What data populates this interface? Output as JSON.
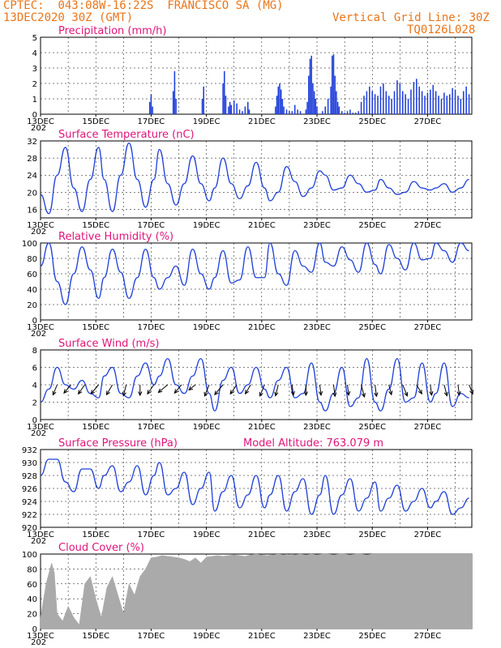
{
  "header": {
    "source": "CPTEC:",
    "coords": "043:08W-16:22S",
    "station": "FRANCISCO SA (MG)",
    "date": "13DEC2020 30Z (GMT)",
    "grid_note": "Vertical Grid Line: 30Z",
    "code": "TQ0126L028"
  },
  "colors": {
    "header": "#e8751a",
    "title": "#e0157a",
    "line": "#1f3fd9",
    "bars": "#1f3fd9",
    "cloud": "#aaaaaa"
  },
  "x_labels": [
    "13DEC",
    "15DEC",
    "17DEC",
    "19DEC",
    "21DEC",
    "23DEC",
    "25DEC",
    "27DEC"
  ],
  "x_sublabel": "202",
  "chart_data": [
    {
      "type": "bar",
      "title": "Precipitation (mm/h)",
      "ylim": [
        0,
        5
      ],
      "yticks": [
        0,
        1,
        2,
        3,
        4,
        5
      ],
      "x_start_day": 13,
      "x_end_day": 28.6,
      "x": [
        16.95,
        17.0,
        17.05,
        17.8,
        17.85,
        17.9,
        18.85,
        18.9,
        19.6,
        19.65,
        19.7,
        19.8,
        19.85,
        19.9,
        20.0,
        20.1,
        20.2,
        20.3,
        20.4,
        20.5,
        20.55,
        21.5,
        21.55,
        21.6,
        21.65,
        21.7,
        21.75,
        21.8,
        21.9,
        22.0,
        22.1,
        22.2,
        22.3,
        22.4,
        22.6,
        22.65,
        22.7,
        22.75,
        22.8,
        22.85,
        22.9,
        22.95,
        23.0,
        23.2,
        23.3,
        23.4,
        23.5,
        23.55,
        23.6,
        23.65,
        23.7,
        23.75,
        23.8,
        23.9,
        24.0,
        24.1,
        24.2,
        24.3,
        24.4,
        24.5,
        24.6,
        24.7,
        24.8,
        24.9,
        25.0,
        25.1,
        25.2,
        25.3,
        25.4,
        25.5,
        25.6,
        25.7,
        25.8,
        25.9,
        26.0,
        26.1,
        26.2,
        26.3,
        26.4,
        26.5,
        26.6,
        26.7,
        26.8,
        26.9,
        27.0,
        27.1,
        27.2,
        27.3,
        27.4,
        27.5,
        27.6,
        27.7,
        27.8,
        27.9,
        28.0,
        28.1,
        28.2,
        28.3,
        28.4,
        28.5
      ],
      "values": [
        0.8,
        1.3,
        0.5,
        1.5,
        2.8,
        1.0,
        1.0,
        1.8,
        2.0,
        2.8,
        1.2,
        0.5,
        0.8,
        0.6,
        0.9,
        0.7,
        0.3,
        0.2,
        0.5,
        0.8,
        0.3,
        0.5,
        1.2,
        1.8,
        2.0,
        1.6,
        1.0,
        0.5,
        0.3,
        0.2,
        0.2,
        0.6,
        0.3,
        0.2,
        0.3,
        0.8,
        2.5,
        3.6,
        3.8,
        2.0,
        1.5,
        1.0,
        0.5,
        0.2,
        0.5,
        1.0,
        1.8,
        3.8,
        3.9,
        2.5,
        1.5,
        0.8,
        0.5,
        0.2,
        0.1,
        0.2,
        0.3,
        0.1,
        0.1,
        0.2,
        0.8,
        1.2,
        1.5,
        1.8,
        1.5,
        1.3,
        1.2,
        1.8,
        2.0,
        1.5,
        1.2,
        1.0,
        1.5,
        2.2,
        2.0,
        1.5,
        1.3,
        1.0,
        1.6,
        2.1,
        2.3,
        1.8,
        1.5,
        1.2,
        1.4,
        1.6,
        1.9,
        1.5,
        1.2,
        1.0,
        1.4,
        1.2,
        1.3,
        1.7,
        1.6,
        1.2,
        1.0,
        1.5,
        1.8,
        1.3
      ]
    },
    {
      "type": "line",
      "title": "Surface Temperature (nC)",
      "ylim": [
        14,
        32
      ],
      "yticks": [
        16,
        20,
        24,
        28,
        32
      ],
      "x_start_day": 13,
      "x_end_day": 28.6,
      "x": [
        13.0,
        13.3,
        13.6,
        13.9,
        14.2,
        14.5,
        14.8,
        15.1,
        15.3,
        15.6,
        15.9,
        16.2,
        16.5,
        16.8,
        17.1,
        17.3,
        17.6,
        17.9,
        18.2,
        18.5,
        18.8,
        19.1,
        19.3,
        19.6,
        19.9,
        20.2,
        20.5,
        20.8,
        21.1,
        21.3,
        21.6,
        21.9,
        22.2,
        22.5,
        22.8,
        23.1,
        23.3,
        23.6,
        23.9,
        24.2,
        24.5,
        24.8,
        25.1,
        25.3,
        25.6,
        25.9,
        26.2,
        26.5,
        26.8,
        27.1,
        27.3,
        27.6,
        27.9,
        28.2,
        28.5
      ],
      "y": [
        19.5,
        15,
        24,
        30.5,
        21,
        15.5,
        23,
        30.5,
        23,
        15.5,
        24,
        31.5,
        23,
        16.5,
        23,
        30,
        22,
        17,
        22,
        28.5,
        22,
        18,
        21,
        28,
        22,
        18.5,
        21.5,
        27,
        21,
        18,
        20,
        26,
        22.5,
        19,
        21,
        25,
        24,
        20.5,
        21,
        24,
        22,
        20,
        20.5,
        23,
        21,
        19.5,
        20,
        22.5,
        21,
        20.5,
        21,
        22,
        20,
        21,
        23
      ]
    },
    {
      "type": "line",
      "title": "Relative Humidity (%)",
      "ylim": [
        0,
        100
      ],
      "yticks": [
        0,
        20,
        40,
        60,
        80,
        100
      ],
      "x_start_day": 13,
      "x_end_day": 28.6,
      "x": [
        13.0,
        13.3,
        13.6,
        13.9,
        14.2,
        14.5,
        14.8,
        15.1,
        15.3,
        15.6,
        15.9,
        16.2,
        16.5,
        16.8,
        17.1,
        17.3,
        17.6,
        17.9,
        18.2,
        18.5,
        18.8,
        19.1,
        19.3,
        19.6,
        19.9,
        20.2,
        20.5,
        20.8,
        21.1,
        21.3,
        21.6,
        21.9,
        22.2,
        22.5,
        22.8,
        23.1,
        23.3,
        23.6,
        23.9,
        24.2,
        24.5,
        24.8,
        25.1,
        25.3,
        25.6,
        25.9,
        26.2,
        26.5,
        26.8,
        27.1,
        27.3,
        27.6,
        27.9,
        28.2,
        28.5
      ],
      "y": [
        70,
        100,
        50,
        20,
        60,
        95,
        65,
        28,
        55,
        92,
        62,
        28,
        55,
        92,
        55,
        40,
        55,
        70,
        45,
        92,
        60,
        40,
        55,
        90,
        48,
        52,
        95,
        55,
        55,
        100,
        60,
        45,
        90,
        70,
        62,
        100,
        75,
        70,
        95,
        78,
        62,
        100,
        72,
        60,
        98,
        80,
        65,
        100,
        78,
        80,
        100,
        90,
        75,
        100,
        90
      ]
    },
    {
      "type": "line",
      "title": "Surface Wind (m/s)",
      "ylim": [
        0,
        8
      ],
      "yticks": [
        0,
        2,
        4,
        6,
        8
      ],
      "x_start_day": 13,
      "x_end_day": 28.6,
      "x": [
        13.0,
        13.3,
        13.6,
        13.9,
        14.2,
        14.5,
        14.8,
        15.1,
        15.3,
        15.6,
        15.9,
        16.2,
        16.5,
        16.8,
        17.1,
        17.3,
        17.6,
        17.9,
        18.2,
        18.5,
        18.8,
        19.1,
        19.3,
        19.6,
        19.9,
        20.2,
        20.5,
        20.8,
        21.1,
        21.3,
        21.6,
        21.9,
        22.2,
        22.5,
        22.8,
        23.1,
        23.3,
        23.6,
        23.9,
        24.2,
        24.5,
        24.8,
        25.1,
        25.3,
        25.6,
        25.9,
        26.2,
        26.5,
        26.8,
        27.1,
        27.3,
        27.6,
        27.9,
        28.2,
        28.5
      ],
      "y": [
        2,
        3.5,
        6,
        4,
        3.5,
        4.5,
        3,
        2.5,
        5,
        6,
        3,
        2.5,
        5,
        6.5,
        4,
        5,
        7,
        4,
        3,
        5,
        7,
        3,
        1,
        4.5,
        6,
        3,
        4,
        6,
        3.5,
        2.5,
        4.5,
        6,
        2.5,
        3,
        6.5,
        2,
        1,
        3,
        6,
        1.5,
        2.5,
        7,
        2,
        1,
        3.5,
        7,
        2,
        2.5,
        6.5,
        2,
        3,
        6.5,
        1.5,
        3,
        2.5
      ],
      "arrows_x": [
        13.6,
        14.1,
        14.6,
        15.1,
        15.6,
        16.1,
        16.6,
        17.1,
        17.6,
        18.1,
        18.6,
        19.1,
        19.6,
        20.1,
        20.6,
        21.1,
        21.6,
        22.1,
        22.6,
        23.1,
        23.6,
        24.1,
        24.6,
        25.1,
        25.6,
        26.1,
        26.6,
        27.1,
        27.6,
        28.1,
        28.5
      ],
      "arrows_dir_deg": [
        60,
        40,
        45,
        40,
        50,
        70,
        90,
        45,
        30,
        40,
        30,
        60,
        40,
        45,
        50,
        60,
        70,
        100,
        90,
        100,
        100,
        100,
        110,
        100,
        110,
        120,
        130,
        100,
        110,
        100,
        120
      ],
      "arrows_speed": [
        3.5,
        4,
        4,
        4.5,
        4,
        3.5,
        3,
        4,
        5,
        4,
        3,
        4,
        5,
        4,
        3.5,
        4,
        3.5,
        3,
        3,
        3,
        3.5,
        3,
        4,
        3.5,
        3,
        4,
        3.5,
        3,
        3.5,
        3,
        3
      ]
    },
    {
      "type": "line",
      "title": "Surface Pressure (hPa)",
      "annotation": "Model Altitude: 763.079 m",
      "ylim": [
        920,
        932
      ],
      "yticks": [
        920,
        922,
        924,
        926,
        928,
        930,
        932
      ],
      "x_start_day": 13,
      "x_end_day": 28.6,
      "x": [
        13.0,
        13.3,
        13.6,
        13.9,
        14.2,
        14.5,
        14.8,
        15.1,
        15.3,
        15.6,
        15.9,
        16.2,
        16.5,
        16.8,
        17.1,
        17.3,
        17.6,
        17.9,
        18.2,
        18.5,
        18.8,
        19.1,
        19.3,
        19.6,
        19.9,
        20.2,
        20.5,
        20.8,
        21.1,
        21.3,
        21.6,
        21.9,
        22.2,
        22.5,
        22.8,
        23.1,
        23.3,
        23.6,
        23.9,
        24.2,
        24.5,
        24.8,
        25.1,
        25.3,
        25.6,
        25.9,
        26.2,
        26.5,
        26.8,
        27.1,
        27.3,
        27.6,
        27.9,
        28.2,
        28.5
      ],
      "y": [
        928,
        930.5,
        930.5,
        927,
        925.5,
        929,
        929,
        926,
        928,
        929.5,
        925.5,
        927,
        929.5,
        925,
        928,
        930,
        925,
        926,
        928.5,
        923.5,
        926,
        928.5,
        922.5,
        925.5,
        928,
        923,
        925,
        928,
        923,
        925,
        928,
        922.5,
        925.5,
        927.5,
        922,
        925,
        928,
        922,
        925,
        927.5,
        922.5,
        924.5,
        927,
        922.5,
        924.5,
        926.5,
        922.5,
        924,
        926,
        923,
        924,
        925.5,
        922,
        923,
        924.5
      ]
    },
    {
      "type": "area",
      "title": "Cloud Cover (%)",
      "ylim": [
        0,
        100
      ],
      "yticks": [
        0,
        20,
        40,
        60,
        80,
        100
      ],
      "x_start_day": 13,
      "x_end_day": 28.6,
      "x": [
        13.0,
        13.2,
        13.4,
        13.5,
        13.6,
        13.8,
        14.0,
        14.2,
        14.4,
        14.6,
        14.8,
        15.0,
        15.2,
        15.4,
        15.6,
        15.8,
        16.0,
        16.2,
        16.4,
        16.6,
        16.8,
        17.0,
        17.2,
        17.4,
        17.6,
        17.8,
        18.0,
        18.2,
        18.4,
        18.6,
        18.8,
        19.0,
        19.2,
        19.4,
        19.6,
        19.8,
        20.0,
        20.2,
        20.4,
        20.6,
        20.8,
        21.0,
        21.2,
        21.4,
        21.6,
        21.8,
        22.0,
        22.2,
        22.4,
        22.6,
        22.8,
        23.0,
        23.2,
        23.4,
        23.6,
        23.8,
        24.0,
        24.2,
        24.4,
        24.6,
        24.8,
        25.0,
        25.2,
        25.4,
        25.6,
        25.8,
        26.0,
        26.2,
        26.4,
        26.6,
        26.8,
        27.0,
        27.2,
        27.4,
        27.6,
        27.8,
        28.0,
        28.2,
        28.4,
        28.6
      ],
      "y": [
        15,
        60,
        88,
        75,
        20,
        10,
        30,
        15,
        5,
        60,
        70,
        40,
        15,
        55,
        70,
        45,
        20,
        60,
        45,
        70,
        80,
        95,
        96,
        98,
        97,
        96,
        95,
        93,
        90,
        95,
        88,
        96,
        97,
        98,
        97,
        98,
        99,
        98,
        97,
        99,
        100,
        99,
        98,
        99,
        100,
        99,
        98,
        99,
        100,
        99,
        100,
        99,
        100,
        100,
        99,
        100,
        100,
        99,
        100,
        100,
        99,
        100,
        100,
        100,
        100,
        100,
        100,
        100,
        100,
        100,
        100,
        100,
        100,
        100,
        100,
        100,
        100,
        100,
        100,
        100
      ]
    }
  ]
}
